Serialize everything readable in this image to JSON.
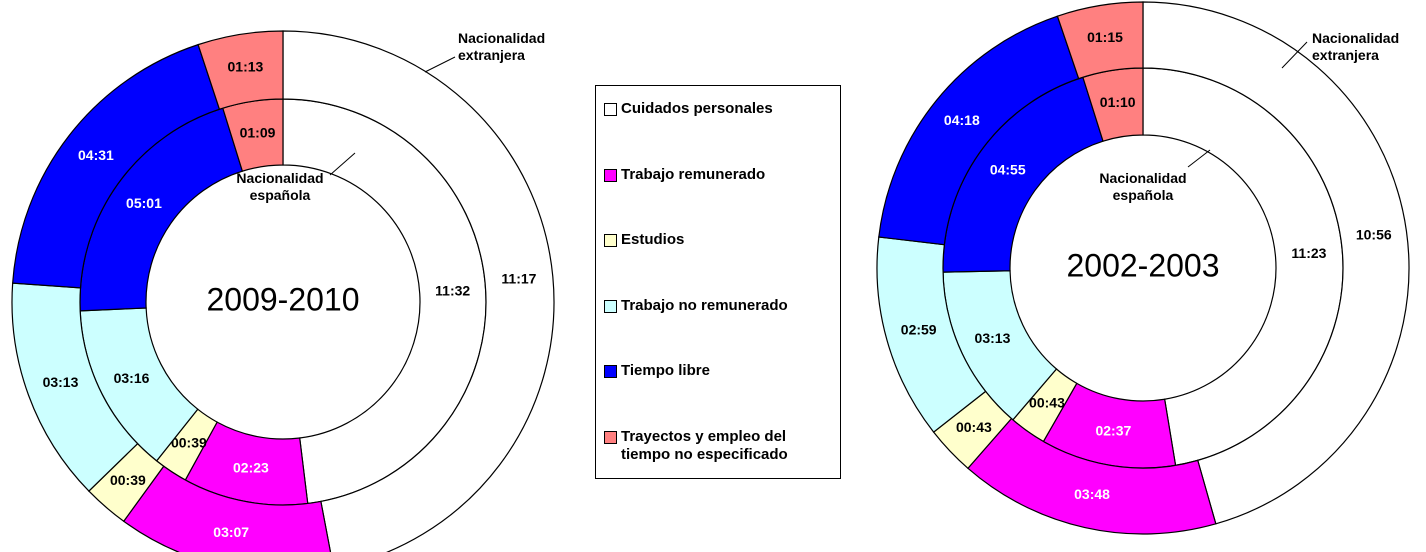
{
  "legend": {
    "categories": [
      "Cuidados personales",
      "Trabajo remunerado",
      "Estudios",
      "Trabajo no remunerado",
      "Tiempo libre",
      "Trayectos y empleo del tiempo no especificado"
    ],
    "colors": [
      "#ffffff",
      "#ff00ff",
      "#ffffcc",
      "#ccffff",
      "#0000ff",
      "#ff8080"
    ]
  },
  "chart_data": [
    {
      "type": "donut",
      "title": "2009-2010",
      "series": [
        {
          "name": "Nacionalidad española",
          "values": [
            692,
            143,
            39,
            196,
            301,
            69
          ],
          "value_labels": [
            "11:32",
            "02:23",
            "00:39",
            "03:16",
            "05:01",
            "01:09"
          ]
        },
        {
          "name": "Nacionalidad extranjera",
          "values": [
            677,
            187,
            39,
            193,
            271,
            73
          ],
          "value_labels": [
            "11:17",
            "03:07",
            "00:39",
            "03:13",
            "04:31",
            "01:13"
          ]
        }
      ]
    },
    {
      "type": "donut",
      "title": "2002-2003",
      "series": [
        {
          "name": "Nacionalidad española",
          "values": [
            683,
            157,
            43,
            193,
            295,
            70
          ],
          "value_labels": [
            "11:23",
            "02:37",
            "00:43",
            "03:13",
            "04:55",
            "01:10"
          ]
        },
        {
          "name": "Nacionalidad extranjera",
          "values": [
            656,
            228,
            43,
            179,
            258,
            75
          ],
          "value_labels": [
            "10:56",
            "03:48",
            "00:43",
            "02:59",
            "04:18",
            "01:15"
          ]
        }
      ]
    }
  ]
}
